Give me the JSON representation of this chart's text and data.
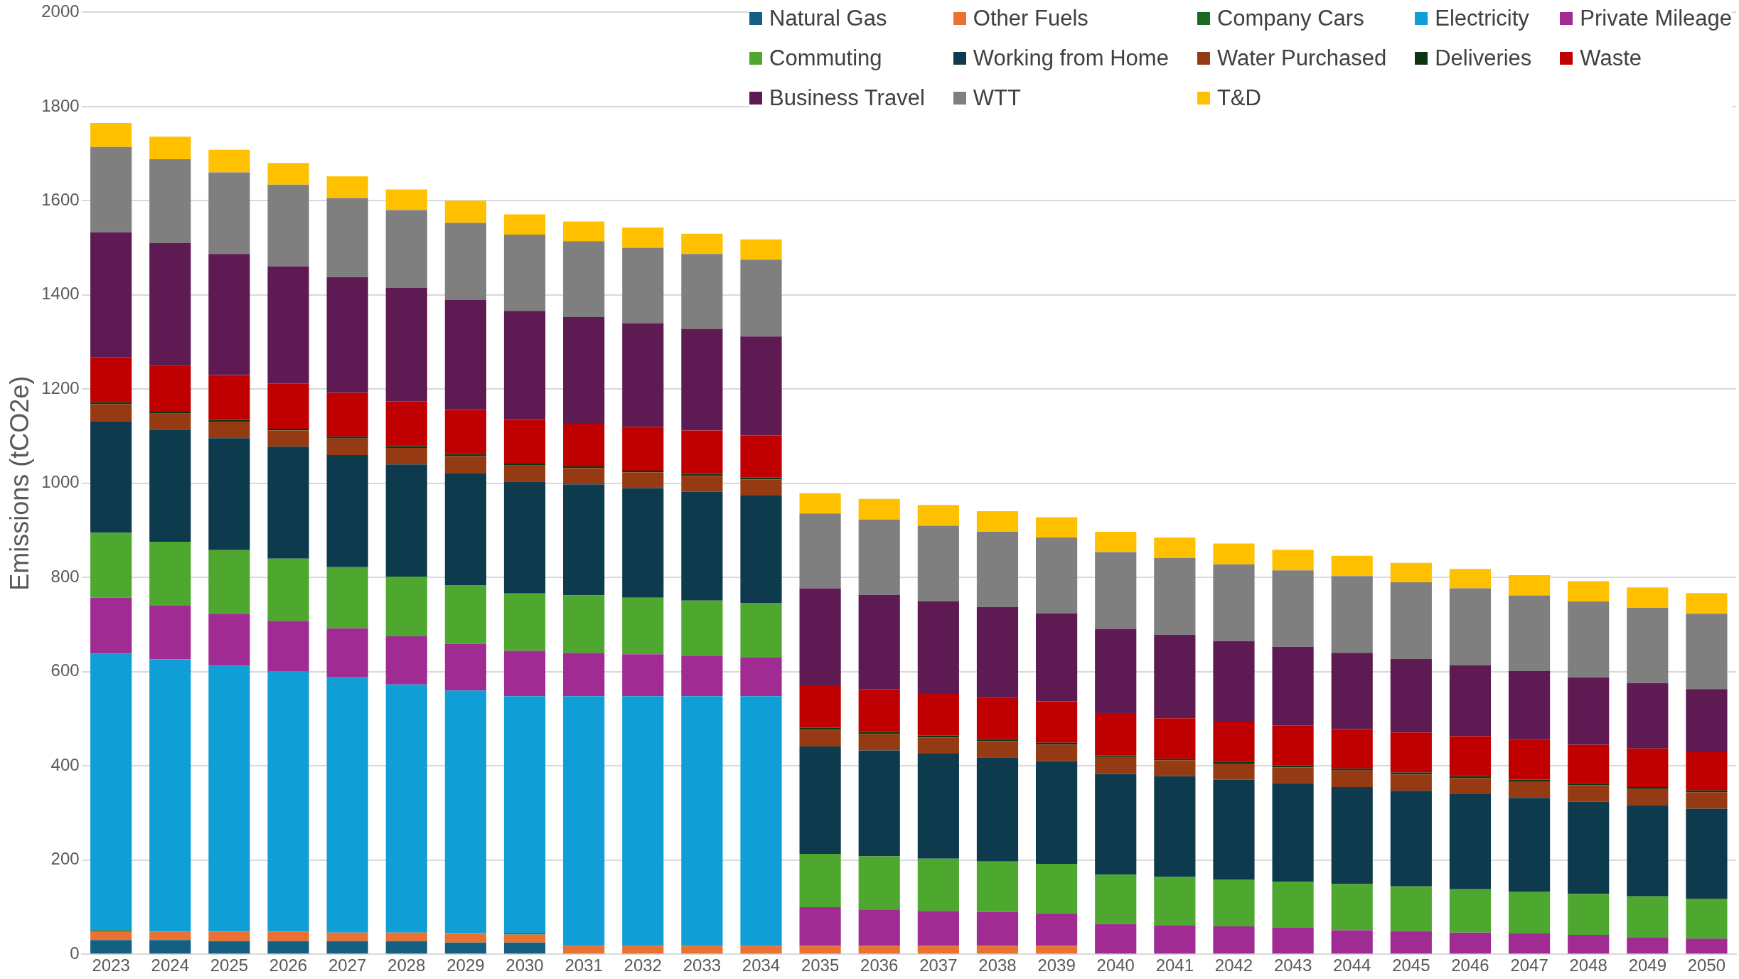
{
  "chart_data": {
    "type": "bar",
    "stacked": true,
    "ylabel": "Emissions (tCO2e)",
    "categories": [
      "2023",
      "2024",
      "2025",
      "2026",
      "2027",
      "2028",
      "2029",
      "2030",
      "2031",
      "2032",
      "2033",
      "2034",
      "2035",
      "2036",
      "2037",
      "2038",
      "2039",
      "2040",
      "2041",
      "2042",
      "2043",
      "2044",
      "2045",
      "2046",
      "2047",
      "2048",
      "2049",
      "2050"
    ],
    "series": [
      {
        "name": "Natural Gas",
        "color": "#156082",
        "values": [
          30,
          30,
          28,
          28,
          28,
          28,
          25,
          25,
          0,
          0,
          0,
          0,
          0,
          0,
          0,
          0,
          0,
          0,
          0,
          0,
          0,
          0,
          0,
          0,
          0,
          0,
          0,
          0
        ]
      },
      {
        "name": "Other Fuels",
        "color": "#e97132",
        "values": [
          18,
          18,
          20,
          20,
          18,
          18,
          20,
          17,
          18,
          18,
          18,
          18,
          18,
          18,
          18,
          18,
          18,
          0,
          0,
          0,
          0,
          0,
          0,
          0,
          0,
          0,
          0,
          0
        ]
      },
      {
        "name": "Company Cars",
        "color": "#196b24",
        "values": [
          3,
          0,
          0,
          0,
          0,
          0,
          0,
          2,
          0,
          0,
          0,
          0,
          0,
          0,
          0,
          0,
          0,
          0,
          0,
          0,
          0,
          0,
          0,
          0,
          0,
          0,
          0,
          0
        ]
      },
      {
        "name": "Electricity",
        "color": "#0f9ed5",
        "values": [
          587,
          578,
          565,
          552,
          542,
          527,
          515,
          504,
          530,
          530,
          530,
          530,
          0,
          0,
          0,
          0,
          0,
          0,
          0,
          0,
          0,
          0,
          0,
          0,
          0,
          0,
          0,
          0
        ]
      },
      {
        "name": "Private Mileage",
        "color": "#a02b93",
        "values": [
          119,
          115,
          110,
          108,
          104,
          102,
          99,
          96,
          92,
          89,
          86,
          82,
          82,
          77,
          74,
          72,
          69,
          64,
          62,
          59,
          56,
          51,
          49,
          46,
          44,
          41,
          36,
          33
        ]
      },
      {
        "name": "Commuting",
        "color": "#4ea72e",
        "values": [
          138,
          135,
          135,
          132,
          130,
          127,
          125,
          122,
          122,
          120,
          117,
          116,
          113,
          113,
          111,
          107,
          105,
          105,
          102,
          100,
          98,
          98,
          95,
          92,
          89,
          87,
          87,
          85
        ]
      },
      {
        "name": "Working from Home",
        "color": "#0e3a4e",
        "values": [
          237,
          238,
          238,
          238,
          238,
          238,
          238,
          238,
          236,
          233,
          231,
          228,
          228,
          225,
          223,
          221,
          218,
          214,
          214,
          212,
          209,
          206,
          203,
          202,
          199,
          196,
          194,
          191
        ]
      },
      {
        "name": "Water Purchased",
        "color": "#953a12",
        "values": [
          36,
          34,
          35,
          34,
          35,
          35,
          36,
          34,
          34,
          33,
          34,
          34,
          36,
          35,
          34,
          35,
          35,
          36,
          34,
          34,
          34,
          35,
          35,
          34,
          35,
          35,
          34,
          35
        ]
      },
      {
        "name": "Deliveries",
        "color": "#0c3512",
        "values": [
          4,
          4,
          4,
          4,
          4,
          4,
          4,
          4,
          4,
          4,
          4,
          4,
          4,
          4,
          4,
          4,
          4,
          3,
          3,
          4,
          4,
          4,
          4,
          4,
          4,
          4,
          4,
          4
        ]
      },
      {
        "name": "Waste",
        "color": "#c00000",
        "values": [
          96,
          98,
          95,
          96,
          93,
          95,
          94,
          93,
          92,
          93,
          92,
          90,
          90,
          91,
          89,
          88,
          88,
          90,
          86,
          85,
          85,
          84,
          85,
          85,
          84,
          82,
          82,
          81
        ]
      },
      {
        "name": "Business Travel",
        "color": "#5e1a52",
        "values": [
          265,
          260,
          257,
          249,
          246,
          241,
          234,
          231,
          225,
          220,
          216,
          210,
          206,
          200,
          197,
          192,
          187,
          179,
          177,
          171,
          167,
          162,
          156,
          151,
          146,
          143,
          139,
          134
        ]
      },
      {
        "name": "WTT",
        "color": "#7f7f7f",
        "values": [
          181,
          178,
          173,
          173,
          168,
          165,
          163,
          162,
          161,
          160,
          159,
          163,
          159,
          160,
          160,
          160,
          161,
          163,
          163,
          163,
          162,
          163,
          163,
          163,
          161,
          161,
          160,
          160
        ]
      },
      {
        "name": "T&D",
        "color": "#ffc000",
        "values": [
          51,
          48,
          48,
          46,
          46,
          44,
          47,
          43,
          42,
          43,
          43,
          43,
          43,
          44,
          44,
          44,
          43,
          43,
          44,
          44,
          44,
          43,
          41,
          41,
          43,
          43,
          43,
          44
        ]
      }
    ],
    "ylim": [
      0,
      2000
    ],
    "yticks": [
      0,
      200,
      400,
      600,
      800,
      1000,
      1200,
      1400,
      1600,
      1800,
      2000
    ],
    "grid": "y",
    "legend": "top right"
  }
}
